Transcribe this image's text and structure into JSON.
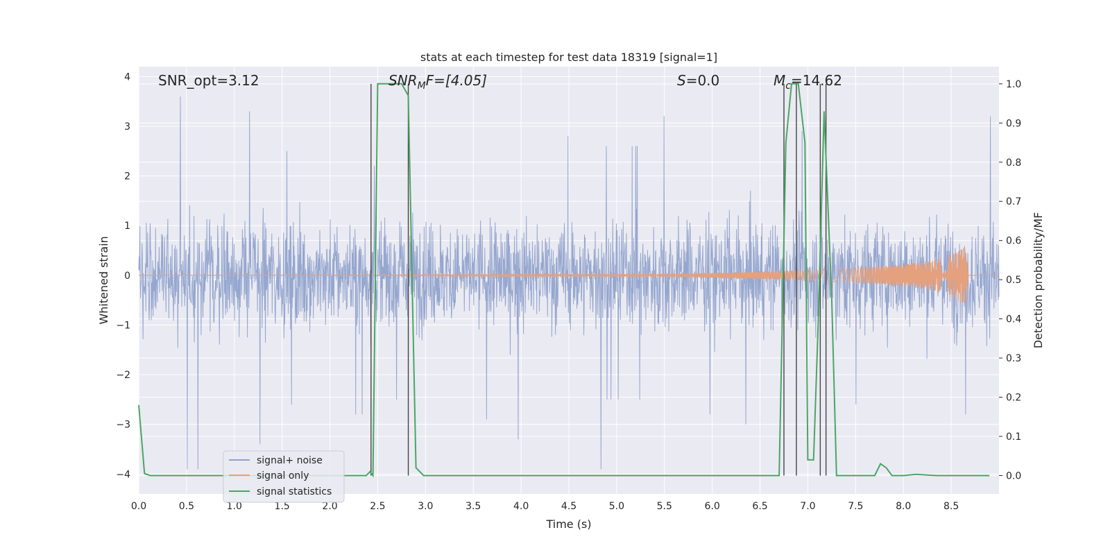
{
  "chart_data": {
    "type": "line",
    "title": "stats at each timestep for test data 18319 [signal=1]",
    "xlabel": "Time (s)",
    "ylabel_left": "Whitened strain",
    "ylabel_right": "Detection probability/MF",
    "xlim": [
      0.0,
      9.0
    ],
    "ylim_left": [
      -4.4,
      4.2
    ],
    "ylim_right": [
      -0.047,
      1.044
    ],
    "x_ticks": [
      "0.0",
      "0.5",
      "1.0",
      "1.5",
      "2.0",
      "2.5",
      "3.0",
      "3.5",
      "4.0",
      "4.5",
      "5.0",
      "5.5",
      "6.0",
      "6.5",
      "7.0",
      "7.5",
      "8.0",
      "8.5"
    ],
    "y_ticks_left": [
      "4",
      "3",
      "2",
      "1",
      "0",
      "−1",
      "−2",
      "−3",
      "−4"
    ],
    "y_ticks_right": [
      "1.0",
      "0.9",
      "0.8",
      "0.7",
      "0.6",
      "0.5",
      "0.4",
      "0.3",
      "0.2",
      "0.1",
      "0.0"
    ],
    "grid": true,
    "legend_position": "lower-left",
    "annotations": {
      "snr_opt": "SNR_opt=3.12",
      "snr_mf_sym": "SNR",
      "snr_mf_sub": "M",
      "snr_mf_rest": "F=[4.05]",
      "s_sym": "S",
      "s_rest": "=0.0",
      "mc_sym": "M",
      "mc_sub": "c",
      "mc_rest": "=14.62"
    },
    "series": [
      {
        "name": "signal+ noise",
        "color": "#8da0cb",
        "note_envelope_max": [
          1.9,
          3.6,
          2.4,
          3.3,
          2.5,
          3.5,
          2.2,
          2.7,
          3.5,
          2.3,
          2.9,
          2.8,
          3.4,
          2.6,
          3.2,
          2.4,
          2.8,
          3.3,
          2.9,
          3.1,
          2.7,
          2.8,
          3.3,
          3.2
        ],
        "note_envelope_min": [
          -2.4,
          -3.9,
          -2.9,
          -3.4,
          -2.6,
          -3.6,
          -2.8,
          -2.5,
          -3.8,
          -2.9,
          -3.3,
          -2.7,
          -3.9,
          -2.5,
          -3.4,
          -2.8,
          -3.0,
          -2.6,
          -3.5,
          -3.2,
          -2.6,
          -2.4,
          -3.8,
          -2.8
        ]
      },
      {
        "name": "signal only",
        "color": "#e5a07d",
        "x": [
          0.0,
          4.8,
          6.0,
          7.0,
          7.5,
          8.0,
          8.3,
          8.5,
          8.6,
          8.65,
          8.68,
          9.0
        ],
        "amplitude": [
          0.0,
          0.02,
          0.05,
          0.1,
          0.15,
          0.22,
          0.3,
          0.42,
          0.55,
          0.6,
          0.0,
          0.0
        ]
      },
      {
        "name": "signal statistics",
        "color": "#4aa564",
        "x": [
          0.0,
          0.06,
          0.12,
          0.2,
          2.38,
          2.42,
          2.45,
          2.5,
          2.75,
          2.82,
          2.9,
          2.98,
          3.1,
          6.7,
          6.77,
          6.83,
          6.9,
          6.97,
          7.0,
          7.06,
          7.11,
          7.17,
          7.25,
          7.3,
          7.36,
          7.7,
          7.76,
          7.82,
          7.88,
          8.0,
          8.13,
          8.35,
          8.6,
          8.9
        ],
        "values": [
          0.18,
          0.005,
          0.0,
          0.0,
          0.0,
          0.01,
          0.0,
          1.0,
          1.0,
          0.97,
          0.02,
          0.0,
          0.0,
          0.0,
          0.85,
          1.0,
          1.0,
          0.85,
          0.04,
          0.04,
          0.4,
          0.93,
          0.45,
          0.0,
          0.0,
          0.0,
          0.03,
          0.02,
          0.0,
          0.0,
          0.003,
          0.0,
          0.0,
          0.0
        ]
      }
    ],
    "vertical_lines": [
      2.43,
      2.82,
      6.75,
      6.88,
      7.13,
      7.19
    ]
  }
}
